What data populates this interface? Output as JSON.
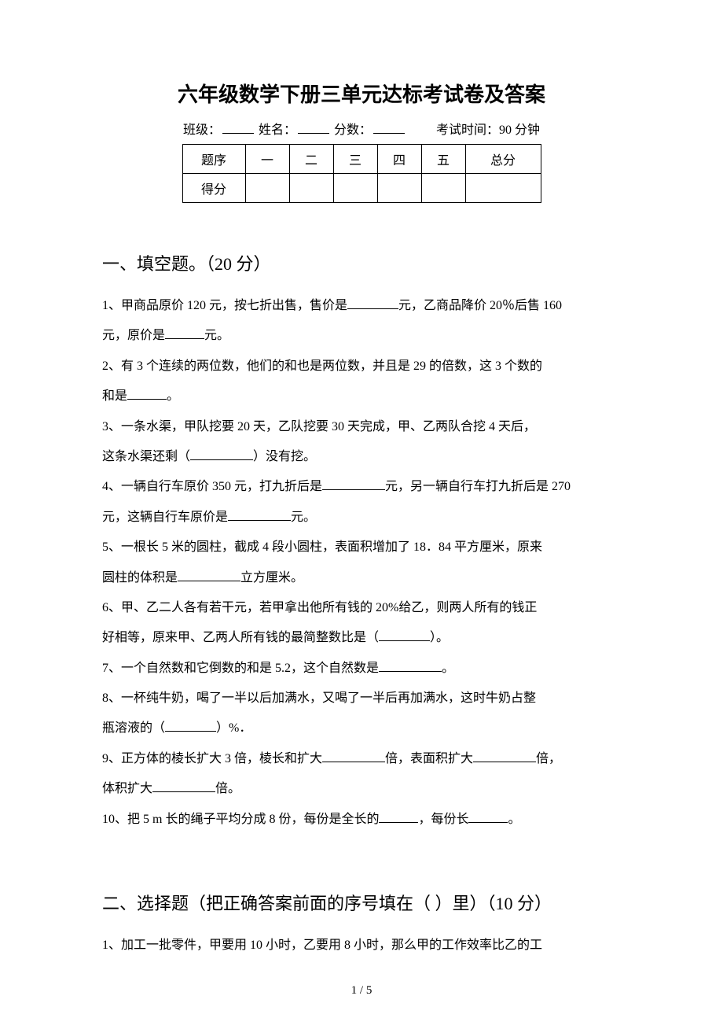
{
  "title": "六年级数学下册三单元达标考试卷及答案",
  "info": {
    "class_label": "班级：",
    "name_label": "姓名：",
    "score_label": "分数：",
    "time_label": "考试时间：90 分钟"
  },
  "score_table": {
    "row1": [
      "题序",
      "一",
      "二",
      "三",
      "四",
      "五",
      "总分"
    ],
    "row2_header": "得分"
  },
  "section1_heading": "一、填空题。（20 分）",
  "questions1": {
    "q1a": "1、甲商品原价 120 元，按七折出售，售价是",
    "q1b": "元，乙商品降价 20％后售 160",
    "q1c": "元，原价是",
    "q1d": "元。",
    "q2a": "2、有 3 个连续的两位数，他们的和也是两位数，并且是 29 的倍数，这 3 个数的",
    "q2b": "和是",
    "q2c": "。",
    "q3a": "3、一条水渠，甲队挖要 20 天，乙队挖要 30 天完成，甲、乙两队合挖 4 天后，",
    "q3b": "这条水渠还剩（",
    "q3c": "）没有挖。",
    "q4a": "4、一辆自行车原价 350 元，打九折后是",
    "q4b": "元，另一辆自行车打九折后是 270",
    "q4c": "元，这辆自行车原价是",
    "q4d": "元。",
    "q5a": "5、一根长 5 米的圆柱，截成 4 段小圆柱，表面积增加了 18．84 平方厘米，原来",
    "q5b": "圆柱的体积是",
    "q5c": "立方厘米。",
    "q6a": "6、甲、乙二人各有若干元，若甲拿出他所有钱的 20%给乙，则两人所有的钱正",
    "q6b": "好相等，原来甲、乙两人所有钱的最简整数比是（",
    "q6c": "）。",
    "q7a": "7、一个自然数和它倒数的和是 5.2，这个自然数是",
    "q7b": "。",
    "q8a": "8、一杯纯牛奶，喝了一半以后加满水，又喝了一半后再加满水，这时牛奶占整",
    "q8b": "瓶溶液的（",
    "q8c": "）%．",
    "q9a": "9、正方体的棱长扩大 3 倍，棱长和扩大",
    "q9b": "倍，表面积扩大",
    "q9c": "倍，",
    "q9d": "体积扩大",
    "q9e": "倍。",
    "q10a": "10、把 5 m 长的绳子平均分成 8 份，每份是全长的",
    "q10b": "，每份长",
    "q10c": "。"
  },
  "section2_heading": "二、选择题（把正确答案前面的序号填在（ ）里）（10 分）",
  "questions2": {
    "q1": "1、加工一批零件，甲要用 10 小时，乙要用 8 小时，那么甲的工作效率比乙的工"
  },
  "page_num": "1 / 5"
}
